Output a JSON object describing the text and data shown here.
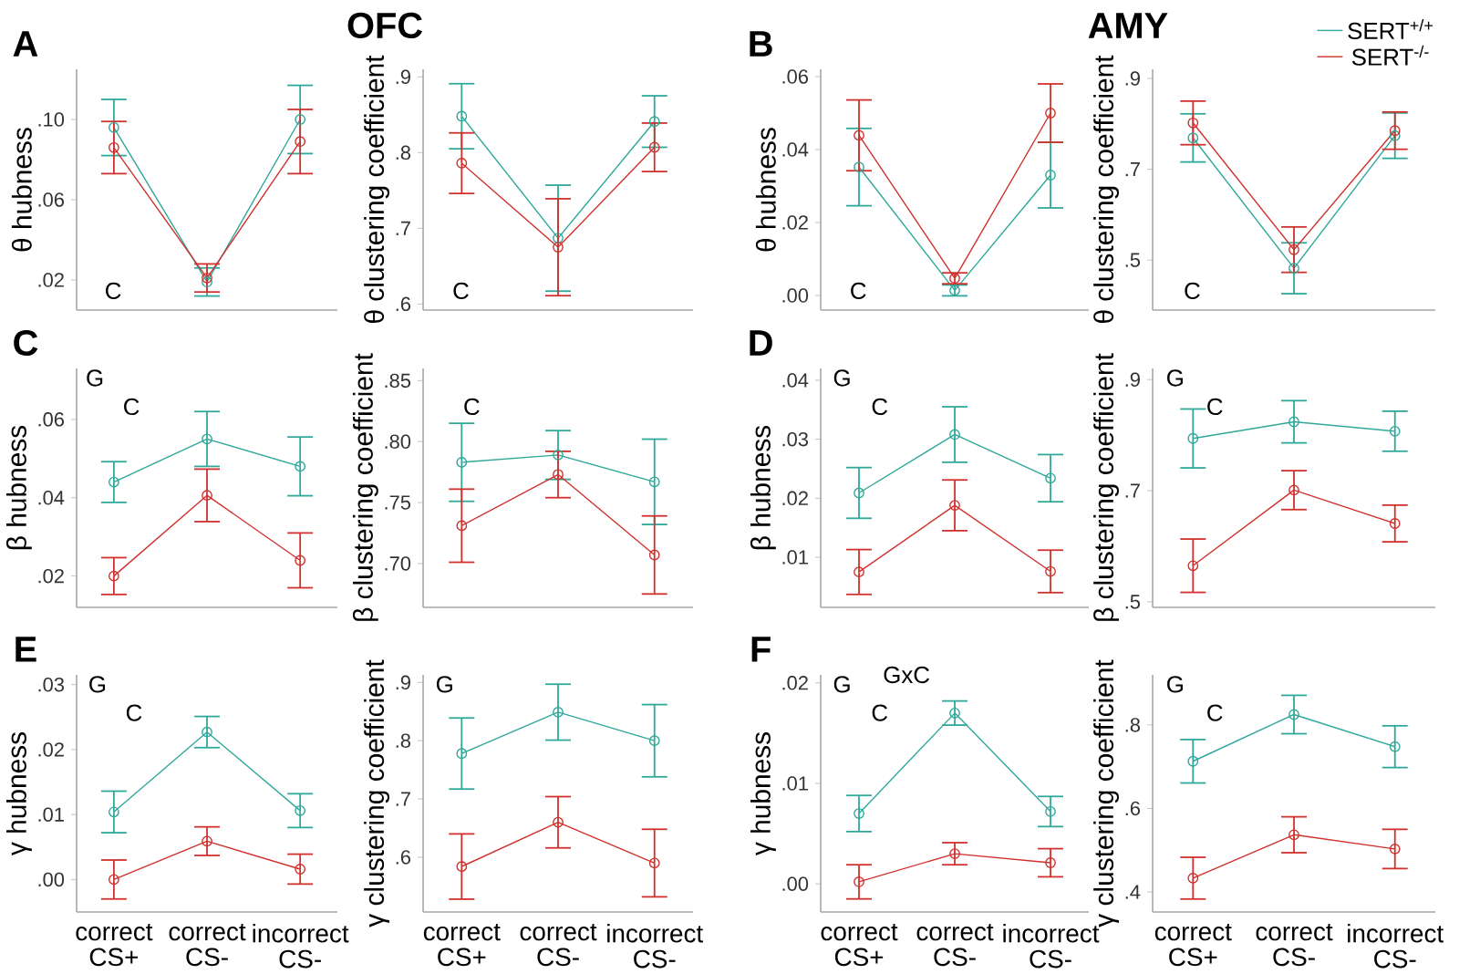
{
  "chart_data": [
    {
      "type": "line",
      "title": "OFC",
      "ylabel": "θ hubness",
      "annotations": [
        "A",
        "C"
      ],
      "categories": [
        null,
        null,
        null
      ],
      "marker": "circle",
      "line_style": "solid",
      "ylim": [
        0.005,
        0.125
      ],
      "yticks": [
        {
          "value": 0.02,
          "label": ".02"
        },
        {
          "value": 0.06,
          "label": ".06"
        },
        {
          "value": 0.1,
          "label": ".10"
        }
      ],
      "series": [
        {
          "color": "#2fa89a",
          "values": [
            0.096,
            0.019,
            0.1
          ],
          "errors": [
            0.014,
            0.007,
            0.017
          ]
        },
        {
          "color": "#d0312d",
          "values": [
            0.086,
            0.021,
            0.089
          ],
          "errors": [
            0.013,
            0.007,
            0.016
          ]
        }
      ]
    },
    {
      "type": "line",
      "ylabel": "θ clustering coefficient",
      "annotations": [
        "C"
      ],
      "categories": [
        null,
        null,
        null
      ],
      "marker": "circle",
      "line_style": "solid",
      "ylim": [
        0.592,
        0.91
      ],
      "yticks": [
        {
          "value": 0.6,
          "label": ".6"
        },
        {
          "value": 0.7,
          "label": ".7"
        },
        {
          "value": 0.8,
          "label": ".8"
        },
        {
          "value": 0.9,
          "label": ".9"
        }
      ],
      "series": [
        {
          "color": "#2fa89a",
          "values": [
            0.848,
            0.687,
            0.841
          ],
          "errors": [
            0.043,
            0.07,
            0.034
          ]
        },
        {
          "color": "#d0312d",
          "values": [
            0.786,
            0.675,
            0.807
          ],
          "errors": [
            0.04,
            0.064,
            0.032
          ]
        }
      ]
    },
    {
      "type": "line",
      "title": "AMY",
      "ylabel": "θ hubness",
      "annotations": [
        "B",
        "C"
      ],
      "categories": [
        null,
        null,
        null
      ],
      "marker": "circle",
      "line_style": "solid",
      "ylim": [
        -0.004,
        0.062
      ],
      "yticks": [
        {
          "value": 0.0,
          "label": ".00"
        },
        {
          "value": 0.02,
          "label": ".02"
        },
        {
          "value": 0.04,
          "label": ".04"
        },
        {
          "value": 0.06,
          "label": ".06"
        }
      ],
      "series": [
        {
          "color": "#2fa89a",
          "values": [
            0.0352,
            0.0014,
            0.033
          ],
          "errors": [
            0.0106,
            0.0015,
            0.009
          ]
        },
        {
          "color": "#d0312d",
          "values": [
            0.0439,
            0.0047,
            0.05
          ],
          "errors": [
            0.0097,
            0.0015,
            0.008
          ]
        }
      ]
    },
    {
      "type": "line",
      "ylabel": "θ clustering coefficient",
      "annotations": [
        "C"
      ],
      "categories": [
        null,
        null,
        null
      ],
      "marker": "circle",
      "line_style": "solid",
      "legend": "top right",
      "ylim": [
        0.39,
        0.92
      ],
      "yticks": [
        {
          "value": 0.5,
          "label": ".5"
        },
        {
          "value": 0.7,
          "label": ".7"
        },
        {
          "value": 0.9,
          "label": ".9"
        }
      ],
      "series": [
        {
          "name": "SERT$^{+/+}$",
          "color": "#2fa89a",
          "values": [
            0.769,
            0.482,
            0.774
          ],
          "errors": [
            0.053,
            0.056,
            0.05
          ]
        },
        {
          "name": "SERT$^{-/-}$",
          "color": "#d0312d",
          "values": [
            0.802,
            0.523,
            0.785
          ],
          "errors": [
            0.048,
            0.05,
            0.041
          ]
        }
      ]
    },
    {
      "type": "line",
      "ylabel": "β hubness",
      "annotations": [
        "C",
        "G",
        "C"
      ],
      "categories": [
        null,
        null,
        null
      ],
      "marker": "circle",
      "line_style": "solid",
      "ylim": [
        0.012,
        0.073
      ],
      "yticks": [
        {
          "value": 0.02,
          "label": ".02"
        },
        {
          "value": 0.04,
          "label": ".04"
        },
        {
          "value": 0.06,
          "label": ".06"
        }
      ],
      "series": [
        {
          "color": "#2fa89a",
          "values": [
            0.044,
            0.055,
            0.048
          ],
          "errors": [
            0.0052,
            0.007,
            0.0075
          ]
        },
        {
          "color": "#d0312d",
          "values": [
            0.02,
            0.0406,
            0.024
          ],
          "errors": [
            0.0047,
            0.0067,
            0.007
          ]
        }
      ]
    },
    {
      "type": "line",
      "ylabel": "β clustering coefficient",
      "annotations": [
        "C"
      ],
      "categories": [
        null,
        null,
        null
      ],
      "marker": "circle",
      "line_style": "solid",
      "ylim": [
        0.664,
        0.86
      ],
      "yticks": [
        {
          "value": 0.7,
          "label": ".70"
        },
        {
          "value": 0.75,
          "label": ".75"
        },
        {
          "value": 0.8,
          "label": ".80"
        },
        {
          "value": 0.85,
          "label": ".85"
        }
      ],
      "series": [
        {
          "color": "#2fa89a",
          "values": [
            0.783,
            0.789,
            0.767
          ],
          "errors": [
            0.032,
            0.02,
            0.035
          ]
        },
        {
          "color": "#d0312d",
          "values": [
            0.731,
            0.773,
            0.707
          ],
          "errors": [
            0.03,
            0.019,
            0.032
          ]
        }
      ]
    },
    {
      "type": "line",
      "ylabel": "β hubness",
      "annotations": [
        "D",
        "G",
        "C"
      ],
      "categories": [
        null,
        null,
        null
      ],
      "marker": "circle",
      "line_style": "solid",
      "ylim": [
        0.0015,
        0.042
      ],
      "yticks": [
        {
          "value": 0.01,
          "label": ".01"
        },
        {
          "value": 0.02,
          "label": ".02"
        },
        {
          "value": 0.03,
          "label": ".03"
        },
        {
          "value": 0.04,
          "label": ".04"
        }
      ],
      "series": [
        {
          "color": "#2fa89a",
          "values": [
            0.0209,
            0.0308,
            0.0234
          ],
          "errors": [
            0.0043,
            0.0047,
            0.004
          ]
        },
        {
          "color": "#d0312d",
          "values": [
            0.0075,
            0.0188,
            0.0076
          ],
          "errors": [
            0.0038,
            0.0043,
            0.0036
          ]
        }
      ]
    },
    {
      "type": "line",
      "ylabel": "β clustering coefficient",
      "annotations": [
        "G",
        "C"
      ],
      "categories": [
        null,
        null,
        null
      ],
      "marker": "circle",
      "line_style": "solid",
      "ylim": [
        0.49,
        0.92
      ],
      "yticks": [
        {
          "value": 0.5,
          "label": ".5"
        },
        {
          "value": 0.7,
          "label": ".7"
        },
        {
          "value": 0.9,
          "label": ".9"
        }
      ],
      "series": [
        {
          "color": "#2fa89a",
          "values": [
            0.794,
            0.824,
            0.807
          ],
          "errors": [
            0.053,
            0.038,
            0.036
          ]
        },
        {
          "color": "#d0312d",
          "values": [
            0.565,
            0.701,
            0.641
          ],
          "errors": [
            0.048,
            0.035,
            0.033
          ]
        }
      ]
    },
    {
      "type": "line",
      "ylabel": "γ hubness",
      "annotations": [
        "E",
        "G",
        "C"
      ],
      "categories": [
        "correct CS+",
        "correct CS-",
        "incorrect CS-"
      ],
      "marker": "circle",
      "line_style": "solid",
      "ylim": [
        -0.005,
        0.0315
      ],
      "yticks": [
        {
          "value": 0.0,
          "label": ".00"
        },
        {
          "value": 0.01,
          "label": ".01"
        },
        {
          "value": 0.02,
          "label": ".02"
        },
        {
          "value": 0.03,
          "label": ".03"
        }
      ],
      "series": [
        {
          "color": "#2fa89a",
          "values": [
            0.0104,
            0.0227,
            0.0106
          ],
          "errors": [
            0.0032,
            0.0024,
            0.0026
          ]
        },
        {
          "color": "#d0312d",
          "values": [
            0.0,
            0.0059,
            0.0016
          ],
          "errors": [
            0.003,
            0.0022,
            0.0023
          ]
        }
      ]
    },
    {
      "type": "line",
      "ylabel": "γ clustering coefficient",
      "annotations": [
        "G"
      ],
      "categories": [
        "correct CS+",
        "correct CS-",
        "incorrect CS-"
      ],
      "marker": "circle",
      "line_style": "solid",
      "ylim": [
        0.506,
        0.913
      ],
      "yticks": [
        {
          "value": 0.6,
          "label": ".6"
        },
        {
          "value": 0.7,
          "label": ".7"
        },
        {
          "value": 0.8,
          "label": ".8"
        },
        {
          "value": 0.9,
          "label": ".9"
        }
      ],
      "series": [
        {
          "color": "#2fa89a",
          "values": [
            0.778,
            0.849,
            0.8
          ],
          "errors": [
            0.061,
            0.048,
            0.062
          ]
        },
        {
          "color": "#d0312d",
          "values": [
            0.584,
            0.66,
            0.59
          ],
          "errors": [
            0.056,
            0.044,
            0.058
          ]
        }
      ]
    },
    {
      "type": "line",
      "ylabel": "γ hubness",
      "annotations": [
        "F",
        "G",
        "GxC",
        "C"
      ],
      "categories": [
        "correct CS+",
        "correct CS-",
        "incorrect CS-"
      ],
      "marker": "circle",
      "line_style": "solid",
      "ylim": [
        -0.0028,
        0.0208
      ],
      "yticks": [
        {
          "value": 0.0,
          "label": ".00"
        },
        {
          "value": 0.01,
          "label": ".01"
        },
        {
          "value": 0.02,
          "label": ".02"
        }
      ],
      "series": [
        {
          "color": "#2fa89a",
          "values": [
            0.007,
            0.017,
            0.0072
          ],
          "errors": [
            0.0018,
            0.0012,
            0.0015
          ]
        },
        {
          "color": "#d0312d",
          "values": [
            0.0002,
            0.003,
            0.0021
          ],
          "errors": [
            0.0017,
            0.0011,
            0.0014
          ]
        }
      ]
    },
    {
      "type": "line",
      "ylabel": "γ clustering coefficient",
      "annotations": [
        "G",
        "C"
      ],
      "categories": [
        "correct CS+",
        "correct CS-",
        "incorrect CS-"
      ],
      "marker": "circle",
      "line_style": "solid",
      "ylim": [
        0.352,
        0.92
      ],
      "yticks": [
        {
          "value": 0.4,
          "label": ".4"
        },
        {
          "value": 0.6,
          "label": ".6"
        },
        {
          "value": 0.8,
          "label": ".8"
        }
      ],
      "series": [
        {
          "color": "#2fa89a",
          "values": [
            0.713,
            0.825,
            0.748
          ],
          "errors": [
            0.052,
            0.046,
            0.05
          ]
        },
        {
          "color": "#d0312d",
          "values": [
            0.433,
            0.537,
            0.503
          ],
          "errors": [
            0.05,
            0.043,
            0.047
          ]
        }
      ]
    }
  ]
}
